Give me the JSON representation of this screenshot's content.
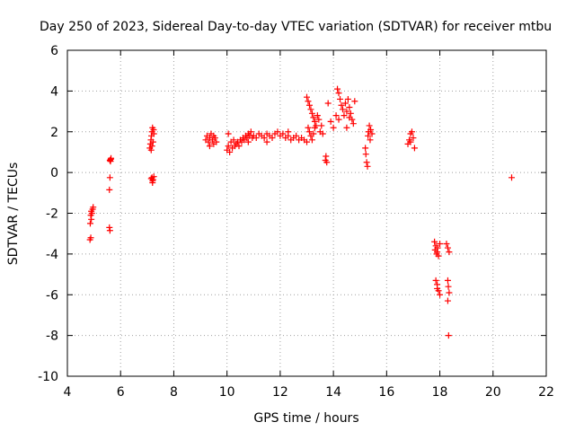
{
  "chart_data": {
    "type": "scatter",
    "title": "Day 250 of 2023, Sidereal Day-to-day VTEC variation (SDTVAR) for receiver mtbu",
    "xlabel": "GPS time / hours",
    "ylabel": "SDTVAR / TECUs",
    "xlim": [
      4,
      22
    ],
    "ylim": [
      -10,
      6
    ],
    "xticks": [
      4,
      6,
      8,
      10,
      12,
      14,
      16,
      18,
      20,
      22
    ],
    "yticks": [
      6,
      4,
      2,
      0,
      -2,
      -4,
      -6,
      -8,
      -10
    ],
    "grid": true,
    "marker": "+",
    "series": [
      {
        "name": "SDTVAR",
        "color": "#ff0000",
        "points": [
          [
            4.85,
            -3.3
          ],
          [
            4.88,
            -3.2
          ],
          [
            4.86,
            -2.5
          ],
          [
            4.9,
            -2.3
          ],
          [
            4.92,
            -2.0
          ],
          [
            4.95,
            -1.8
          ],
          [
            4.97,
            -1.7
          ],
          [
            4.88,
            -2.1
          ],
          [
            4.9,
            -1.9
          ],
          [
            5.58,
            -0.85
          ],
          [
            5.6,
            -0.25
          ],
          [
            5.62,
            0.55
          ],
          [
            5.64,
            0.7
          ],
          [
            5.6,
            0.6
          ],
          [
            5.63,
            0.65
          ],
          [
            5.58,
            -2.7
          ],
          [
            5.6,
            -2.85
          ],
          [
            7.1,
            1.2
          ],
          [
            7.12,
            1.4
          ],
          [
            7.14,
            1.6
          ],
          [
            7.16,
            1.8
          ],
          [
            7.18,
            2.0
          ],
          [
            7.2,
            2.2
          ],
          [
            7.15,
            1.1
          ],
          [
            7.22,
            1.5
          ],
          [
            7.25,
            1.9
          ],
          [
            7.18,
            1.3
          ],
          [
            7.24,
            2.1
          ],
          [
            7.15,
            -0.3
          ],
          [
            7.18,
            -0.25
          ],
          [
            7.2,
            -0.4
          ],
          [
            7.22,
            -0.35
          ],
          [
            7.25,
            -0.2
          ],
          [
            7.2,
            -0.5
          ],
          [
            9.2,
            1.6
          ],
          [
            9.25,
            1.8
          ],
          [
            9.3,
            1.5
          ],
          [
            9.35,
            1.7
          ],
          [
            9.4,
            1.9
          ],
          [
            9.45,
            1.6
          ],
          [
            9.5,
            1.4
          ],
          [
            9.55,
            1.7
          ],
          [
            9.6,
            1.5
          ],
          [
            9.35,
            1.3
          ],
          [
            9.5,
            1.8
          ],
          [
            10.0,
            1.1
          ],
          [
            10.05,
            1.3
          ],
          [
            10.1,
            1.0
          ],
          [
            10.15,
            1.5
          ],
          [
            10.2,
            1.2
          ],
          [
            10.25,
            1.6
          ],
          [
            10.3,
            1.3
          ],
          [
            10.35,
            1.4
          ],
          [
            10.4,
            1.5
          ],
          [
            10.45,
            1.3
          ],
          [
            10.5,
            1.6
          ],
          [
            10.55,
            1.5
          ],
          [
            10.6,
            1.7
          ],
          [
            10.65,
            1.6
          ],
          [
            10.7,
            1.8
          ],
          [
            10.75,
            1.7
          ],
          [
            10.8,
            1.9
          ],
          [
            10.85,
            1.8
          ],
          [
            10.9,
            2.0
          ],
          [
            10.95,
            1.7
          ],
          [
            11.0,
            1.8
          ],
          [
            11.1,
            1.7
          ],
          [
            11.2,
            1.9
          ],
          [
            11.3,
            1.8
          ],
          [
            11.4,
            1.7
          ],
          [
            11.5,
            1.9
          ],
          [
            11.6,
            1.8
          ],
          [
            11.7,
            1.7
          ],
          [
            11.8,
            1.9
          ],
          [
            11.9,
            2.0
          ],
          [
            12.0,
            1.8
          ],
          [
            12.1,
            1.9
          ],
          [
            12.2,
            1.7
          ],
          [
            12.3,
            1.8
          ],
          [
            12.4,
            1.6
          ],
          [
            12.5,
            1.7
          ],
          [
            12.6,
            1.8
          ],
          [
            12.7,
            1.6
          ],
          [
            12.8,
            1.7
          ],
          [
            12.9,
            1.6
          ],
          [
            10.05,
            1.9
          ],
          [
            10.8,
            1.5
          ],
          [
            11.5,
            1.5
          ],
          [
            12.3,
            2.0
          ],
          [
            13.0,
            3.7
          ],
          [
            13.05,
            3.5
          ],
          [
            13.1,
            3.3
          ],
          [
            13.15,
            3.1
          ],
          [
            13.2,
            2.9
          ],
          [
            13.25,
            2.7
          ],
          [
            13.3,
            2.5
          ],
          [
            13.35,
            2.3
          ],
          [
            13.4,
            2.8
          ],
          [
            13.45,
            2.6
          ],
          [
            13.05,
            2.2
          ],
          [
            13.1,
            2.0
          ],
          [
            13.15,
            1.8
          ],
          [
            13.2,
            1.6
          ],
          [
            13.25,
            1.9
          ],
          [
            13.3,
            2.2
          ],
          [
            13.5,
            2.0
          ],
          [
            13.55,
            2.3
          ],
          [
            13.6,
            1.9
          ],
          [
            13.0,
            1.5
          ],
          [
            13.7,
            0.6
          ],
          [
            13.72,
            0.8
          ],
          [
            13.75,
            0.5
          ],
          [
            13.8,
            3.4
          ],
          [
            13.9,
            2.5
          ],
          [
            14.0,
            2.2
          ],
          [
            14.1,
            2.8
          ],
          [
            14.2,
            2.6
          ],
          [
            14.15,
            4.1
          ],
          [
            14.2,
            3.9
          ],
          [
            14.25,
            3.6
          ],
          [
            14.3,
            3.3
          ],
          [
            14.35,
            3.1
          ],
          [
            14.4,
            2.8
          ],
          [
            14.45,
            3.4
          ],
          [
            14.5,
            3.0
          ],
          [
            14.55,
            3.6
          ],
          [
            14.6,
            3.2
          ],
          [
            14.65,
            2.9
          ],
          [
            14.7,
            2.6
          ],
          [
            14.75,
            2.4
          ],
          [
            14.8,
            3.5
          ],
          [
            14.5,
            2.2
          ],
          [
            14.6,
            2.7
          ],
          [
            15.2,
            1.2
          ],
          [
            15.22,
            0.9
          ],
          [
            15.25,
            0.5
          ],
          [
            15.28,
            0.3
          ],
          [
            15.3,
            1.8
          ],
          [
            15.32,
            2.0
          ],
          [
            15.35,
            2.3
          ],
          [
            15.38,
            1.6
          ],
          [
            15.4,
            2.1
          ],
          [
            15.45,
            1.9
          ],
          [
            16.8,
            1.4
          ],
          [
            16.85,
            1.6
          ],
          [
            16.9,
            1.9
          ],
          [
            16.95,
            2.0
          ],
          [
            17.0,
            1.7
          ],
          [
            17.05,
            1.2
          ],
          [
            16.9,
            1.5
          ],
          [
            17.8,
            -3.4
          ],
          [
            17.85,
            -3.6
          ],
          [
            17.9,
            -3.9
          ],
          [
            17.95,
            -4.1
          ],
          [
            18.0,
            -3.5
          ],
          [
            17.82,
            -3.8
          ],
          [
            17.88,
            -4.0
          ],
          [
            17.92,
            -3.7
          ],
          [
            17.85,
            -5.3
          ],
          [
            17.9,
            -5.5
          ],
          [
            17.95,
            -5.8
          ],
          [
            18.0,
            -6.0
          ],
          [
            17.9,
            -5.7
          ],
          [
            18.25,
            -3.5
          ],
          [
            18.3,
            -3.7
          ],
          [
            18.35,
            -3.9
          ],
          [
            18.3,
            -5.3
          ],
          [
            18.32,
            -5.6
          ],
          [
            18.35,
            -5.9
          ],
          [
            18.3,
            -6.3
          ],
          [
            18.33,
            -8.0
          ],
          [
            20.7,
            -0.25
          ]
        ]
      }
    ]
  }
}
